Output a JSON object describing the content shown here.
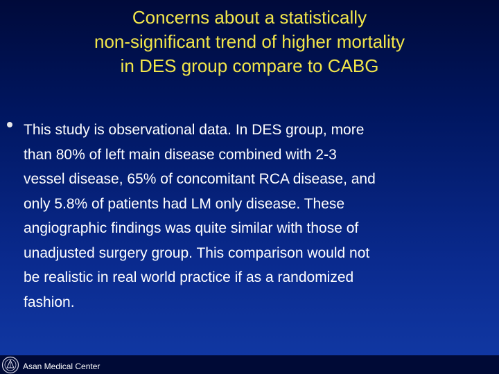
{
  "title_lines": [
    "Concerns about a statistically",
    "non-significant trend of higher mortality",
    "in DES group compare to CABG"
  ],
  "body_lines": [
    "This study is observational data. In DES group, more",
    "than 80% of left main disease combined with 2-3",
    "vessel disease, 65% of concomitant RCA disease, and",
    "only 5.8% of patients had LM only disease. These",
    "angiographic findings was quite similar with those of",
    "unadjusted surgery group. This comparison would not",
    "be realistic in real world practice if as a randomized",
    "fashion."
  ],
  "footer": {
    "org_name": "Asan Medical Center",
    "logo_icon": "asan-medical-center-logo-icon"
  },
  "colors": {
    "background_top": "#000a3a",
    "background_bottom": "#123aa6",
    "title": "#f2e64a",
    "body_text": "#ffffff",
    "footer_bar": "#000a36"
  }
}
